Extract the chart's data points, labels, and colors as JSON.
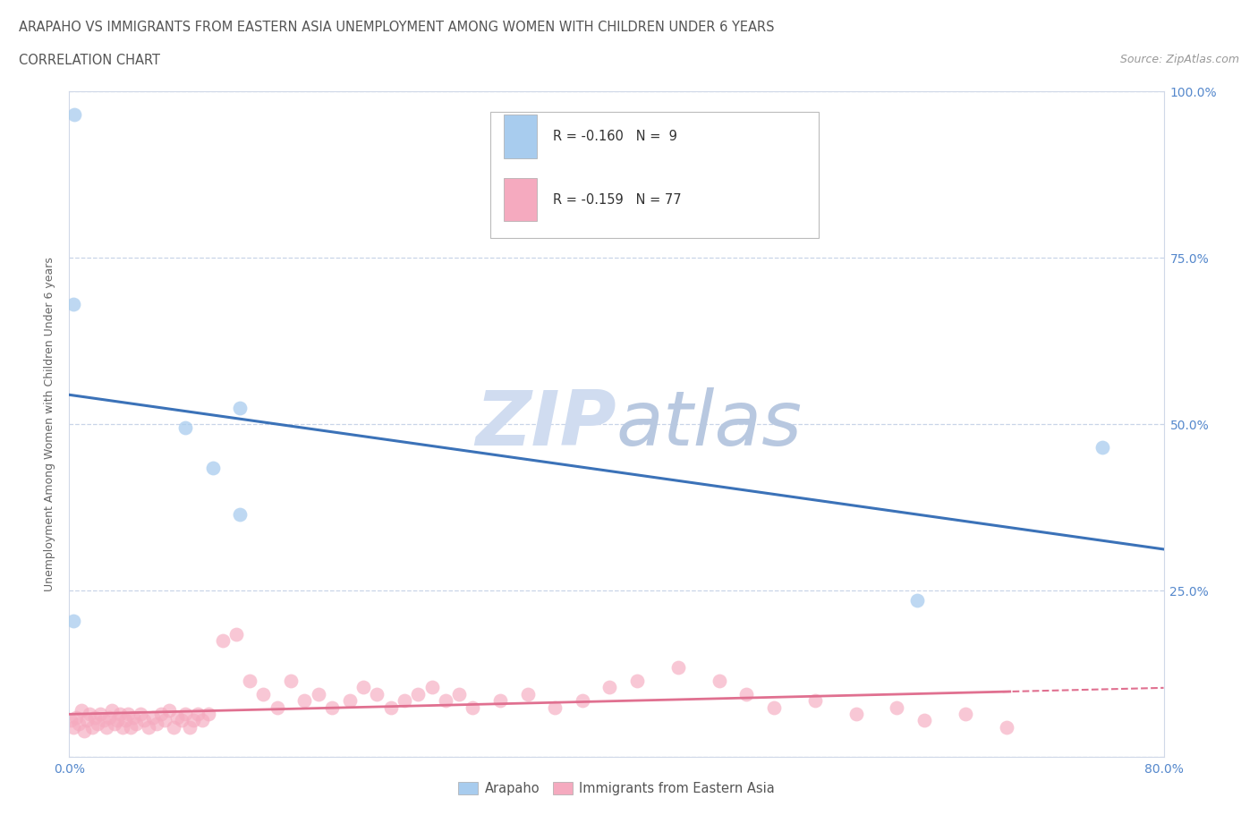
{
  "title_line1": "ARAPAHO VS IMMIGRANTS FROM EASTERN ASIA UNEMPLOYMENT AMONG WOMEN WITH CHILDREN UNDER 6 YEARS",
  "title_line2": "CORRELATION CHART",
  "source": "Source: ZipAtlas.com",
  "ylabel": "Unemployment Among Women with Children Under 6 years",
  "xlim": [
    0,
    0.8
  ],
  "ylim": [
    0,
    1.0
  ],
  "xticks": [
    0.0,
    0.1,
    0.2,
    0.3,
    0.4,
    0.5,
    0.6,
    0.7,
    0.8
  ],
  "yticks": [
    0.0,
    0.25,
    0.5,
    0.75,
    1.0
  ],
  "arapaho_color": "#A8CCEE",
  "eastern_asia_color": "#F5AABF",
  "arapaho_line_color": "#3B72B8",
  "eastern_asia_line_color": "#E07090",
  "arapaho_R": -0.16,
  "arapaho_N": 9,
  "eastern_asia_R": -0.159,
  "eastern_asia_N": 77,
  "arapaho_x": [
    0.004,
    0.003,
    0.085,
    0.105,
    0.125,
    0.125,
    0.003,
    0.62,
    0.755
  ],
  "arapaho_y": [
    0.965,
    0.68,
    0.495,
    0.435,
    0.525,
    0.365,
    0.205,
    0.235,
    0.465
  ],
  "eastern_asia_x": [
    0.001,
    0.003,
    0.005,
    0.007,
    0.009,
    0.011,
    0.013,
    0.015,
    0.017,
    0.019,
    0.021,
    0.023,
    0.025,
    0.027,
    0.029,
    0.031,
    0.033,
    0.035,
    0.037,
    0.039,
    0.041,
    0.043,
    0.045,
    0.047,
    0.049,
    0.052,
    0.055,
    0.058,
    0.061,
    0.064,
    0.067,
    0.07,
    0.073,
    0.076,
    0.079,
    0.082,
    0.085,
    0.088,
    0.091,
    0.094,
    0.097,
    0.102,
    0.112,
    0.122,
    0.132,
    0.142,
    0.152,
    0.162,
    0.172,
    0.182,
    0.192,
    0.205,
    0.215,
    0.225,
    0.235,
    0.245,
    0.255,
    0.265,
    0.275,
    0.285,
    0.295,
    0.315,
    0.335,
    0.355,
    0.375,
    0.395,
    0.415,
    0.445,
    0.475,
    0.495,
    0.515,
    0.545,
    0.575,
    0.605,
    0.625,
    0.655,
    0.685
  ],
  "eastern_asia_y": [
    0.055,
    0.045,
    0.06,
    0.05,
    0.07,
    0.04,
    0.055,
    0.065,
    0.045,
    0.06,
    0.05,
    0.065,
    0.055,
    0.045,
    0.06,
    0.07,
    0.05,
    0.055,
    0.065,
    0.045,
    0.055,
    0.065,
    0.045,
    0.06,
    0.05,
    0.065,
    0.055,
    0.045,
    0.06,
    0.05,
    0.065,
    0.055,
    0.07,
    0.045,
    0.06,
    0.055,
    0.065,
    0.045,
    0.055,
    0.065,
    0.055,
    0.065,
    0.175,
    0.185,
    0.115,
    0.095,
    0.075,
    0.115,
    0.085,
    0.095,
    0.075,
    0.085,
    0.105,
    0.095,
    0.075,
    0.085,
    0.095,
    0.105,
    0.085,
    0.095,
    0.075,
    0.085,
    0.095,
    0.075,
    0.085,
    0.105,
    0.115,
    0.135,
    0.115,
    0.095,
    0.075,
    0.085,
    0.065,
    0.075,
    0.055,
    0.065,
    0.045
  ],
  "background_color": "#FFFFFF",
  "grid_color": "#C8D4E8",
  "watermark_color": "#D0DCF0",
  "marker_size": 130
}
